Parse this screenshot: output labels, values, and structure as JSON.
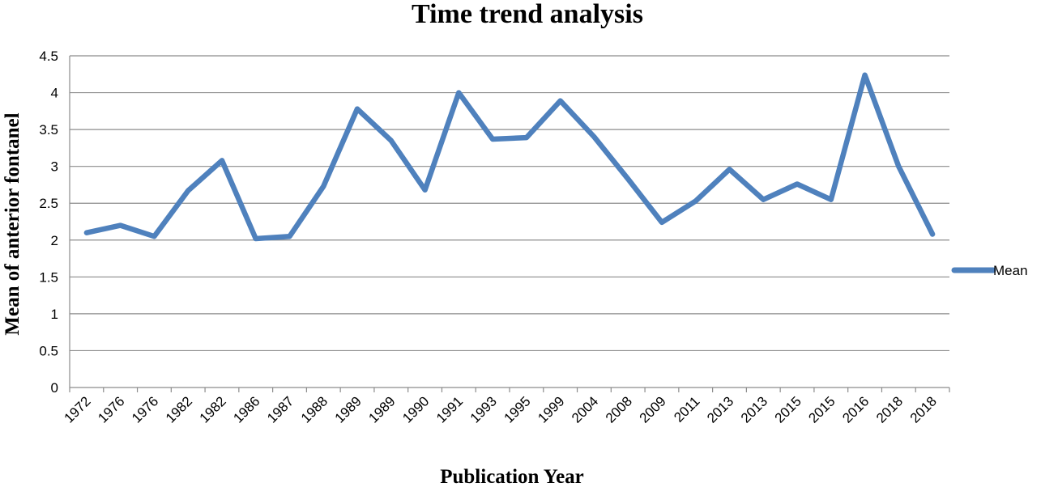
{
  "chart_data": {
    "type": "line",
    "title": "Time trend analysis",
    "xlabel": "Publication Year",
    "ylabel": "Mean of anterior fontanel",
    "ylim": [
      0,
      4.5
    ],
    "yticks": [
      "0",
      "0.5",
      "1",
      "1.5",
      "2",
      "2.5",
      "3",
      "3.5",
      "4",
      "4.5"
    ],
    "categories": [
      "1972",
      "1976",
      "1976",
      "1982",
      "1982",
      "1986",
      "1987",
      "1988",
      "1989",
      "1989",
      "1990",
      "1991",
      "1993",
      "1995",
      "1999",
      "2004",
      "2008",
      "2009",
      "2011",
      "2013",
      "2013",
      "2015",
      "2015",
      "2016",
      "2018",
      "2018"
    ],
    "series": [
      {
        "name": "Mean",
        "color": "#4f81bd",
        "values": [
          2.1,
          2.2,
          2.05,
          2.67,
          3.08,
          2.02,
          2.05,
          2.73,
          3.78,
          3.35,
          2.68,
          4.0,
          3.37,
          3.39,
          3.89,
          3.4,
          2.83,
          2.24,
          2.53,
          2.96,
          2.55,
          2.76,
          2.55,
          4.24,
          3.0,
          2.08
        ]
      }
    ],
    "legend_position": "right",
    "grid": true
  }
}
